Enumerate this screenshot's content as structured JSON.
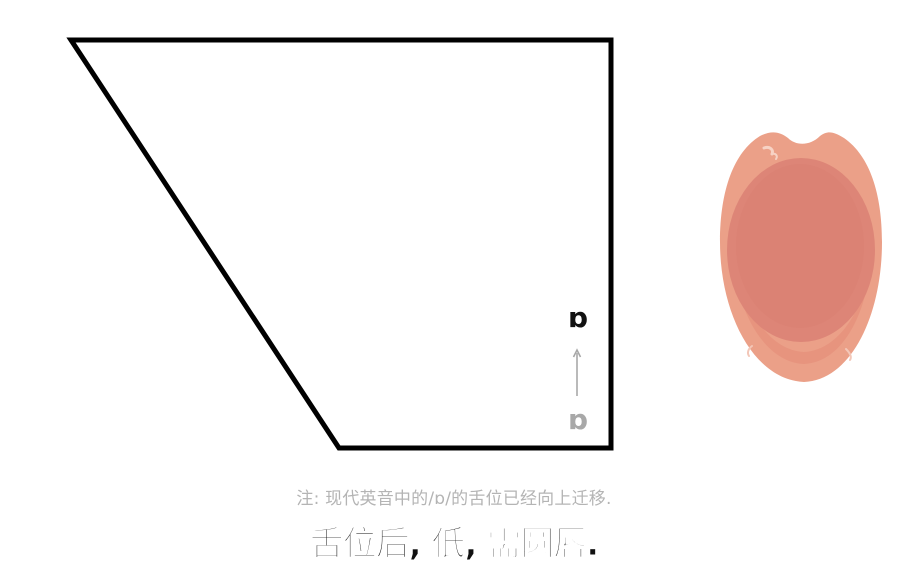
{
  "diagram": {
    "symbol_current": "ɒ",
    "symbol_old": "ɒ",
    "arrow_direction": "up",
    "colors": {
      "outline": "#000000",
      "current_symbol": "#111111",
      "old_symbol": "#a8a8a8",
      "arrow": "#a8a8a8",
      "lips": "#eba088",
      "mouth_interior": "#dd8577"
    }
  },
  "icons": {
    "mouth": "rounded-open-mouth-illustration",
    "arrow": "up-arrow-icon"
  },
  "captions": {
    "note": "注: 现代英音中的/ɒ/的舌位已经向上迁移.",
    "subtitle": "舌位后, 低, 需圆唇."
  }
}
